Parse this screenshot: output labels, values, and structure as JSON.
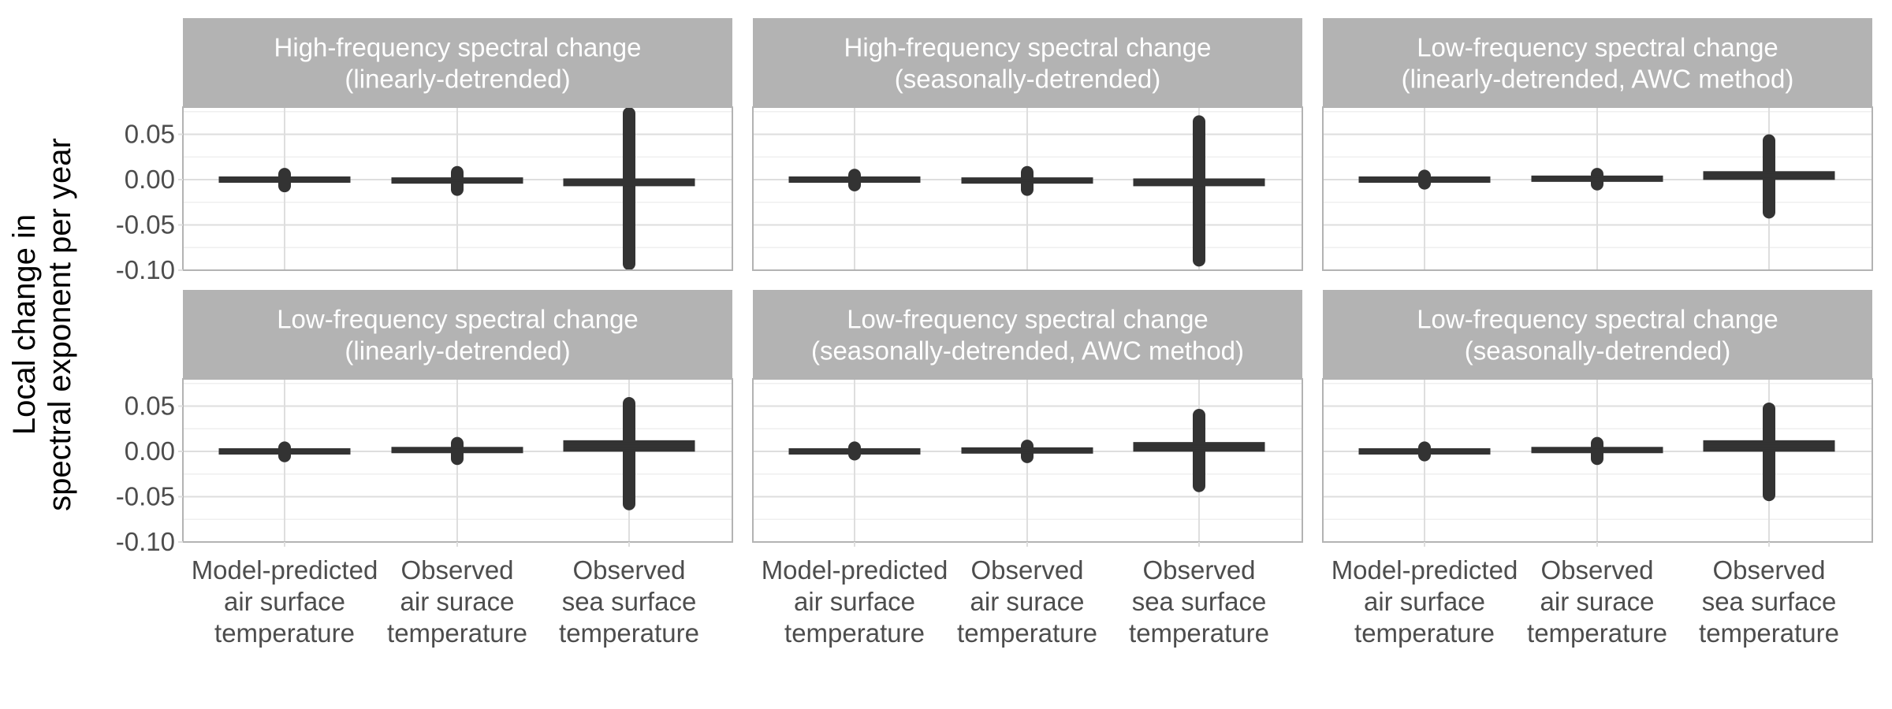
{
  "chart_data": {
    "type": "boxplot",
    "ylabel_lines": [
      "Local change in",
      "spectral exponent per year"
    ],
    "xlabel": "",
    "ylim": [
      -0.1,
      0.08
    ],
    "yticks": [
      0.05,
      0.0,
      -0.05,
      -0.1
    ],
    "ytick_labels": [
      "0.05",
      "0.00",
      "-0.05",
      "-0.10"
    ],
    "grid": true,
    "categories": [
      [
        "Model-predicted",
        "air surface",
        "temperature"
      ],
      [
        "Observed",
        "air surace",
        "temperature"
      ],
      [
        "Observed",
        "sea surface",
        "temperature"
      ]
    ],
    "panels": [
      {
        "title_lines": [
          "High-frequency spectral change",
          "(linearly-detrended)"
        ],
        "boxes": [
          {
            "median": 0.0,
            "q1": -0.001,
            "q3": 0.001,
            "outlier_range": [
              -0.007,
              0.006
            ]
          },
          {
            "median": -0.001,
            "q1": -0.002,
            "q3": 0.0,
            "outlier_range": [
              -0.011,
              0.008
            ]
          },
          {
            "median": -0.003,
            "q1": -0.006,
            "q3": 0.0,
            "outlier_range": [
              -0.093,
              0.073
            ]
          }
        ]
      },
      {
        "title_lines": [
          "High-frequency spectral change",
          "(seasonally-detrended)"
        ],
        "boxes": [
          {
            "median": 0.0,
            "q1": -0.001,
            "q3": 0.001,
            "outlier_range": [
              -0.006,
              0.005
            ]
          },
          {
            "median": -0.001,
            "q1": -0.002,
            "q3": 0.0,
            "outlier_range": [
              -0.011,
              0.008
            ]
          },
          {
            "median": -0.003,
            "q1": -0.006,
            "q3": 0.0,
            "outlier_range": [
              -0.089,
              0.064
            ]
          }
        ]
      },
      {
        "title_lines": [
          "Low-frequency spectral change",
          "(linearly-detrended, AWC method)"
        ],
        "boxes": [
          {
            "median": 0.0,
            "q1": -0.001,
            "q3": 0.001,
            "outlier_range": [
              -0.004,
              0.004
            ]
          },
          {
            "median": 0.001,
            "q1": 0.0,
            "q3": 0.002,
            "outlier_range": [
              -0.005,
              0.006
            ]
          },
          {
            "median": 0.005,
            "q1": 0.001,
            "q3": 0.008,
            "outlier_range": [
              -0.036,
              0.043
            ]
          }
        ]
      },
      {
        "title_lines": [
          "Low-frequency spectral change",
          "(linearly-detrended)"
        ],
        "boxes": [
          {
            "median": 0.0,
            "q1": -0.001,
            "q3": 0.001,
            "outlier_range": [
              -0.005,
              0.004
            ]
          },
          {
            "median": 0.002,
            "q1": 0.0,
            "q3": 0.003,
            "outlier_range": [
              -0.008,
              0.009
            ]
          },
          {
            "median": 0.006,
            "q1": 0.001,
            "q3": 0.011,
            "outlier_range": [
              -0.058,
              0.053
            ]
          }
        ]
      },
      {
        "title_lines": [
          "Low-frequency spectral change",
          "(seasonally-detrended, AWC method)"
        ],
        "boxes": [
          {
            "median": 0.0,
            "q1": -0.001,
            "q3": 0.001,
            "outlier_range": [
              -0.003,
              0.004
            ]
          },
          {
            "median": 0.001,
            "q1": 0.0,
            "q3": 0.002,
            "outlier_range": [
              -0.006,
              0.006
            ]
          },
          {
            "median": 0.005,
            "q1": 0.001,
            "q3": 0.009,
            "outlier_range": [
              -0.038,
              0.04
            ]
          }
        ]
      },
      {
        "title_lines": [
          "Low-frequency spectral change",
          "(seasonally-detrended)"
        ],
        "boxes": [
          {
            "median": 0.0,
            "q1": -0.001,
            "q3": 0.001,
            "outlier_range": [
              -0.004,
              0.004
            ]
          },
          {
            "median": 0.002,
            "q1": 0.0,
            "q3": 0.003,
            "outlier_range": [
              -0.008,
              0.009
            ]
          },
          {
            "median": 0.006,
            "q1": 0.001,
            "q3": 0.011,
            "outlier_range": [
              -0.048,
              0.047
            ]
          }
        ]
      }
    ]
  },
  "colors": {
    "strip_fill": "#b3b3b3",
    "panel_border": "#b3b3b3",
    "grid_major": "#dedede",
    "grid_minor": "#efefef",
    "box": "#333333",
    "tick_text": "#4d4d4d"
  }
}
